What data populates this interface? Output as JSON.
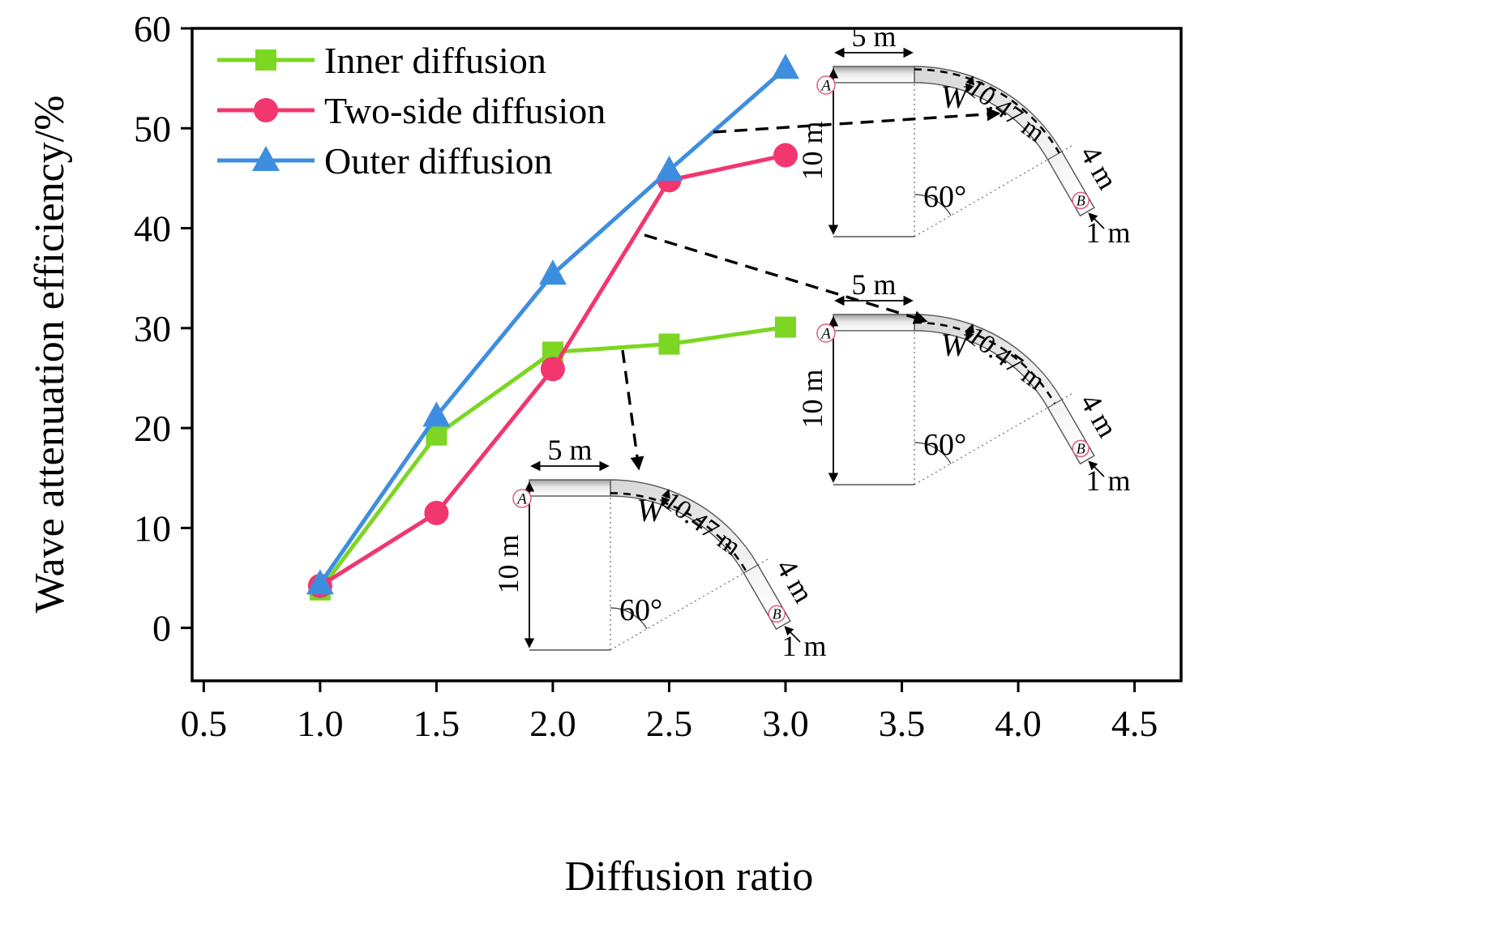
{
  "figure": {
    "background": "#ffffff",
    "frame_color": "#000000"
  },
  "chart_data": {
    "type": "line",
    "title": "",
    "xlabel": "Diffusion ratio",
    "ylabel": "Wave attenuation efficiency/%",
    "xlim": [
      0.45,
      4.7
    ],
    "ylim": [
      -5.3,
      60
    ],
    "xticks": [
      "0.5",
      "1.0",
      "1.5",
      "2.0",
      "2.5",
      "3.0",
      "3.5",
      "4.0",
      "4.5"
    ],
    "yticks": [
      "0",
      "10",
      "20",
      "30",
      "40",
      "50",
      "60"
    ],
    "x": [
      1.0,
      1.5,
      2.0,
      2.5,
      3.0
    ],
    "series": [
      {
        "name": "Inner diffusion",
        "color": "#7cd622",
        "marker": "square",
        "values": [
          3.8,
          19.3,
          27.6,
          28.4,
          30.1
        ]
      },
      {
        "name": "Two-side diffusion",
        "color": "#f2366f",
        "marker": "circle",
        "values": [
          4.2,
          11.5,
          25.9,
          44.8,
          47.3
        ]
      },
      {
        "name": "Outer diffusion",
        "color": "#3e8ee0",
        "marker": "triangle",
        "values": [
          4.4,
          21.2,
          35.4,
          45.8,
          56.0
        ]
      }
    ],
    "legend": {
      "position": "top-left",
      "items": [
        "Inner diffusion",
        "Two-side diffusion",
        "Outer diffusion"
      ]
    },
    "grid": false
  },
  "insets": {
    "labels": {
      "top_width": "5 m",
      "height": "10 m",
      "band_width": "W",
      "arc_length": "10.47 m",
      "angle": "60°",
      "end_length": "4 m",
      "end_width": "1 m",
      "point_a": "A",
      "point_b": "B"
    },
    "variants": [
      {
        "id": "inset-outer-diffusion",
        "dash": "outer"
      },
      {
        "id": "inset-two-side-diffusion",
        "dash": "center"
      },
      {
        "id": "inset-inner-diffusion",
        "dash": "inner"
      }
    ]
  }
}
